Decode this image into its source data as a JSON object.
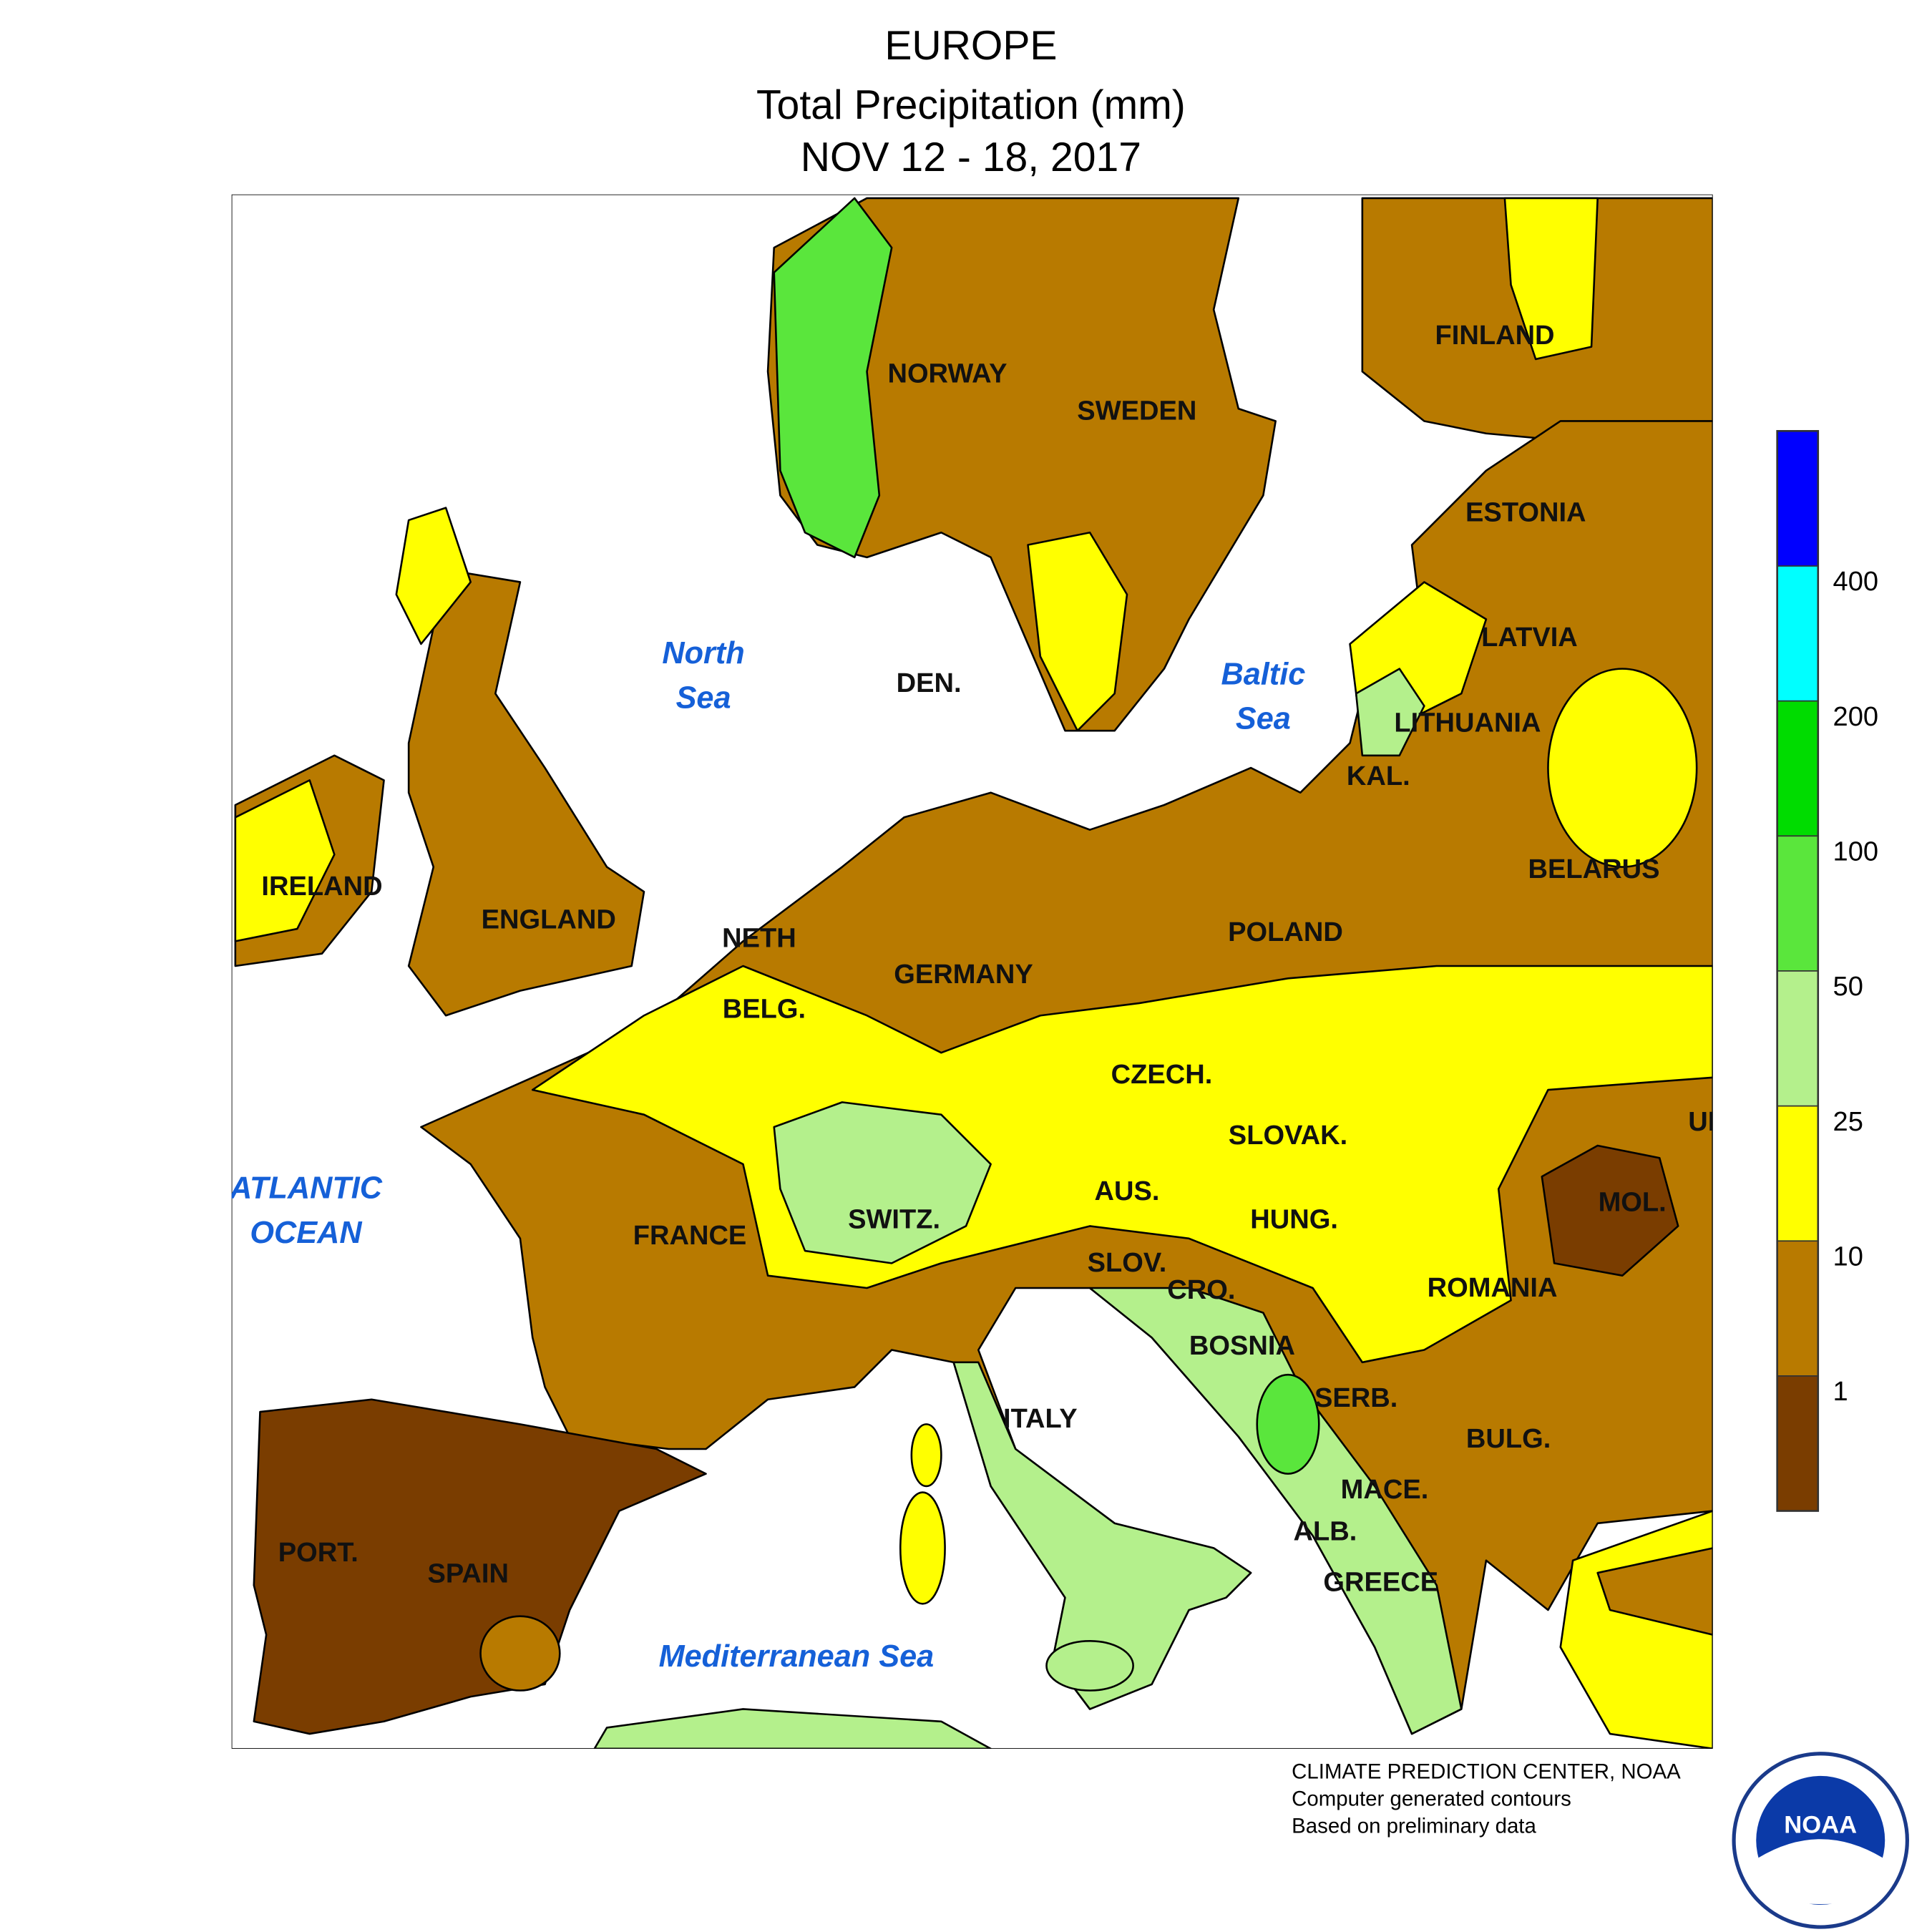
{
  "header": {
    "title": "EUROPE",
    "subtitle": "Total Precipitation (mm)",
    "period": "NOV 12 - 18, 2017"
  },
  "map": {
    "countries": [
      "NORWAY",
      "SWEDEN",
      "FINLAND",
      "ESTONIA",
      "LATVIA",
      "LITHUANIA",
      "KAL.",
      "BELARUS",
      "POLAND",
      "DEN.",
      "IRELAND",
      "ENGLAND",
      "NETH",
      "BELG.",
      "GERMANY",
      "CZECH.",
      "SLOVAK.",
      "UKR.",
      "AUS.",
      "SWITZ.",
      "HUNG.",
      "MOL.",
      "FRANCE",
      "SLOV.",
      "CRO.",
      "ROMANIA",
      "BOSNIA",
      "SERB.",
      "ITALY",
      "BULG.",
      "MACE.",
      "ALB.",
      "GREECE",
      "PORT.",
      "SPAIN"
    ],
    "seas": [
      {
        "lines": [
          "North",
          "Sea"
        ]
      },
      {
        "lines": [
          "Baltic",
          "Sea"
        ]
      },
      {
        "lines": [
          "ATLANTIC",
          "OCEAN"
        ]
      },
      {
        "lines": [
          "Mediterranean Sea"
        ]
      }
    ]
  },
  "legend": {
    "ticks": [
      1,
      10,
      25,
      50,
      100,
      200,
      400
    ],
    "colors": [
      "#7a3d00",
      "#b87a00",
      "#ffff00",
      "#b4f08c",
      "#5ae63c",
      "#00dc00",
      "#00ffff",
      "#0000ff"
    ]
  },
  "footer": {
    "lines": [
      "CLIMATE PREDICTION CENTER, NOAA",
      "Computer generated contours",
      "Based on preliminary data"
    ],
    "logo": "NOAA"
  }
}
